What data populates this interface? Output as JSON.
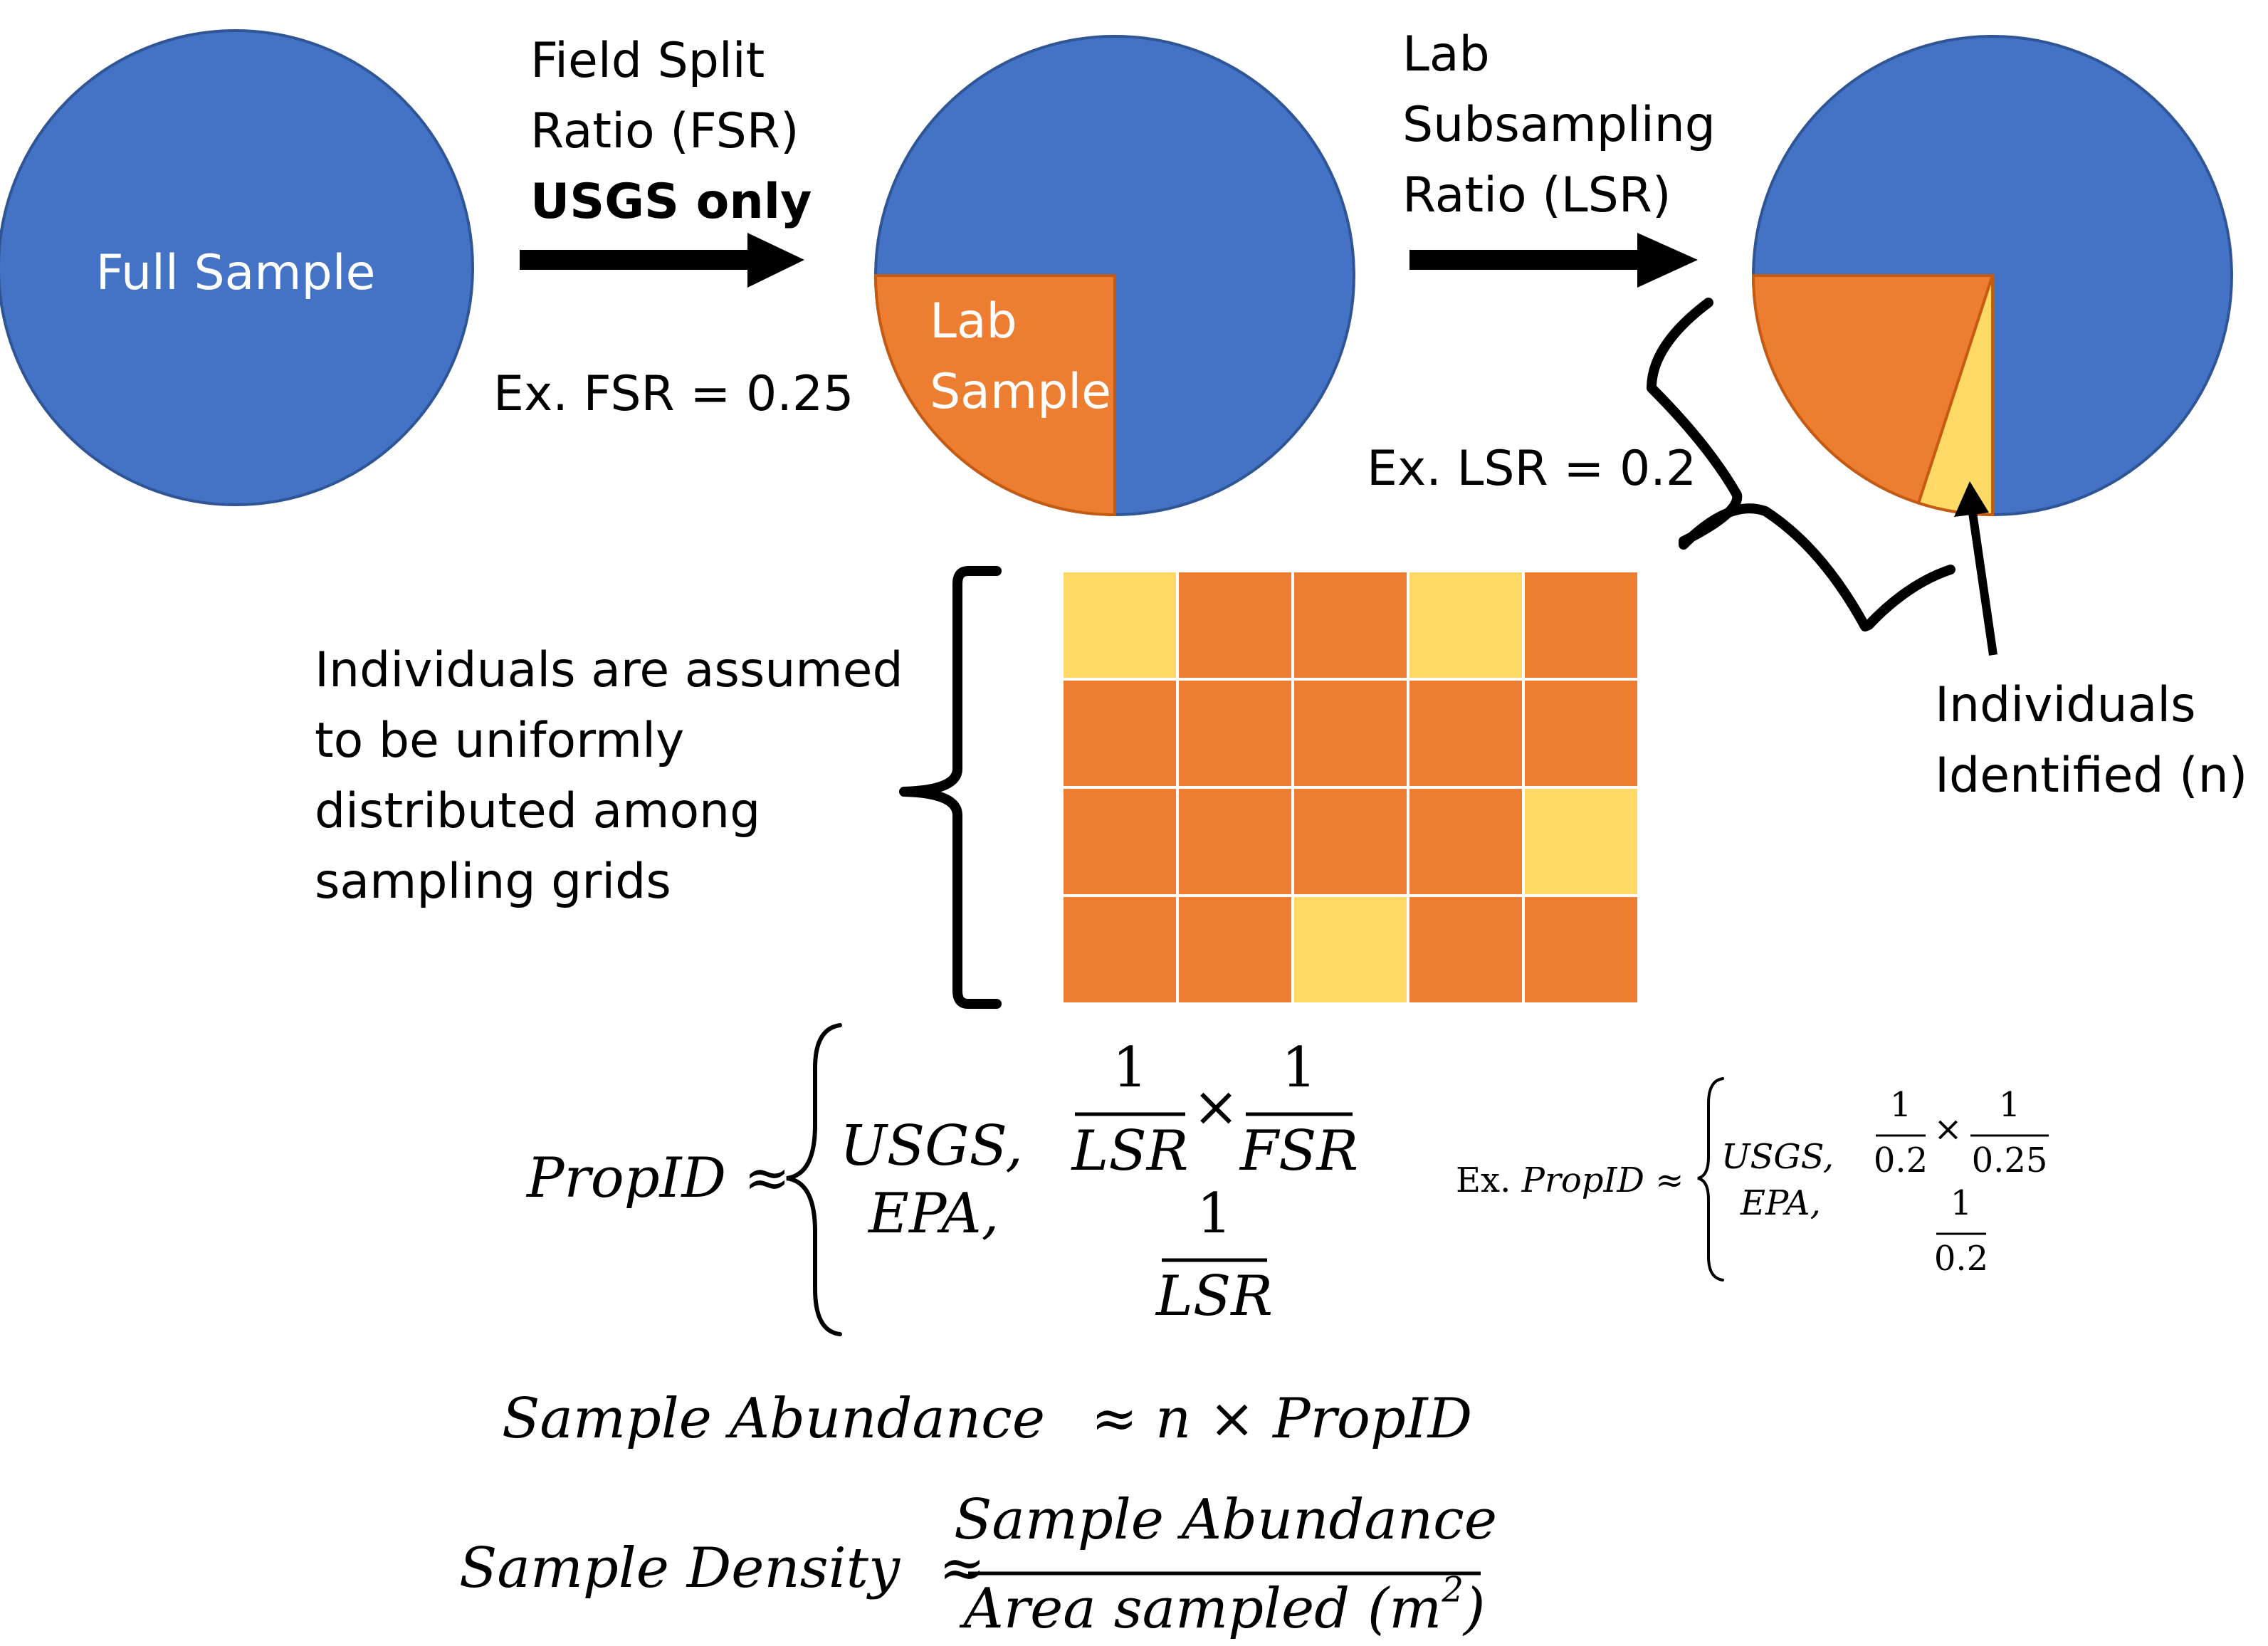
{
  "colors": {
    "blue": "#4472c4",
    "orange": "#ed7d31",
    "yellow": "#ffd966",
    "pie_stroke": "#2f5597",
    "wedge_stroke": "#c55a11"
  },
  "stage1": {
    "label": "Full Sample"
  },
  "step1": {
    "title_line1": "Field Split",
    "title_line2": "Ratio (FSR)",
    "note": "USGS only",
    "example": "Ex. FSR = 0.25"
  },
  "stage2": {
    "slice_fraction": 0.25,
    "label_line1": "Lab",
    "label_line2": "Sample"
  },
  "step2": {
    "title_line1": "Lab",
    "title_line2": "Subsampling",
    "title_line3": "Ratio (LSR)",
    "example": "Ex. LSR = 0.2"
  },
  "stage3": {
    "slice_fraction": 0.25,
    "identified_fraction": 0.05,
    "label_line1": "Individuals",
    "label_line2": "Identified (n)"
  },
  "grid": {
    "rows": [
      [
        "yellow",
        "orange",
        "orange",
        "yellow",
        "orange"
      ],
      [
        "orange",
        "orange",
        "orange",
        "orange",
        "orange"
      ],
      [
        "orange",
        "orange",
        "orange",
        "orange",
        "yellow"
      ],
      [
        "orange",
        "orange",
        "yellow",
        "orange",
        "orange"
      ]
    ]
  },
  "assumption": {
    "line1": "Individuals are assumed",
    "line2": "to be uniformly",
    "line3": "distributed among",
    "line4": "sampling grids"
  },
  "formula_propid": {
    "lhs": "PropID",
    "approx": "≈",
    "case1_label": "USGS,",
    "case2_label": "EPA,",
    "one": "1",
    "lsr": "LSR",
    "fsr": "FSR",
    "times": "×"
  },
  "formula_example": {
    "prefix": "Ex.",
    "lhs": "PropID",
    "approx": "≈",
    "case1_label": "USGS,",
    "case2_label": "EPA,",
    "one": "1",
    "lsr_value": "0.2",
    "fsr_value": "0.25",
    "times": "×"
  },
  "formula_abundance": {
    "lhs": "Sample Abundance",
    "approx": "≈",
    "rhs": "n × PropID"
  },
  "formula_density": {
    "lhs": "Sample Density",
    "approx": "≈",
    "numerator": "Sample Abundance",
    "denominator_text": "Area sampled (m",
    "denominator_exp": "2",
    "denominator_close": ")"
  }
}
